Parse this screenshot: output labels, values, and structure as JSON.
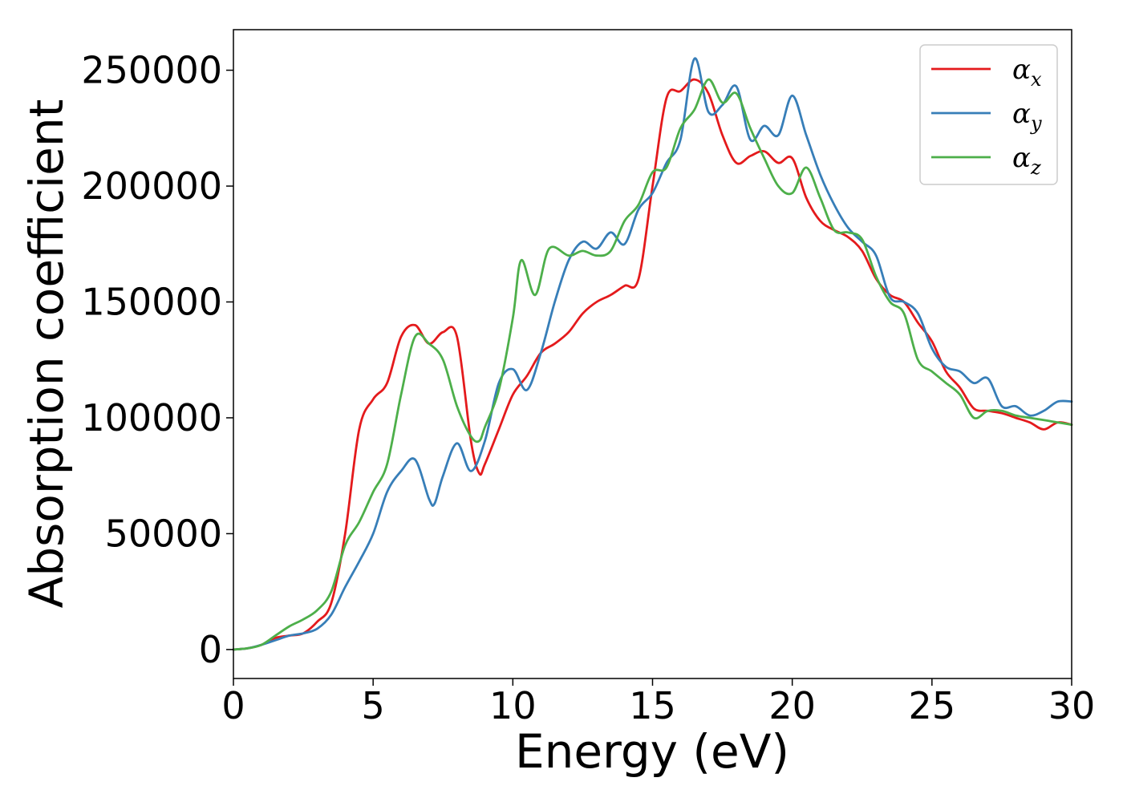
{
  "chart_data": {
    "type": "line",
    "title": "",
    "xlabel": "Energy (eV)",
    "ylabel": "Absorption coefficient",
    "xlim": [
      0,
      30
    ],
    "ylim": [
      -12500,
      267500
    ],
    "xticks": [
      "0",
      "5",
      "10",
      "15",
      "20",
      "25",
      "30"
    ],
    "xtick_values": [
      0,
      5,
      10,
      15,
      20,
      25,
      30
    ],
    "yticks": [
      "0",
      "50000",
      "100000",
      "150000",
      "200000",
      "250000"
    ],
    "ytick_values": [
      0,
      50000,
      100000,
      150000,
      200000,
      250000
    ],
    "grid": false,
    "legend_position": "top-right",
    "series": [
      {
        "name": "αx",
        "base": "α",
        "sub": "x",
        "color": "#e41a1c",
        "x": [
          0,
          0.5,
          1,
          1.5,
          2,
          2.5,
          3,
          3.5,
          4,
          4.5,
          5,
          5.5,
          6,
          6.5,
          7,
          7.5,
          8,
          8.5,
          8.8,
          9,
          9.5,
          10,
          10.5,
          11,
          11.5,
          12,
          12.5,
          13,
          13.5,
          14,
          14.5,
          15,
          15.5,
          16,
          16.5,
          17,
          17.5,
          18,
          18.5,
          19,
          19.5,
          20,
          20.5,
          21,
          21.5,
          22,
          22.5,
          23,
          23.5,
          24,
          24.5,
          25,
          25.5,
          26,
          26.5,
          27,
          27.5,
          28,
          28.5,
          29,
          29.5,
          30
        ],
        "y": [
          0,
          500,
          2000,
          5000,
          6000,
          7000,
          12000,
          20000,
          50000,
          95000,
          108000,
          115000,
          135000,
          140000,
          132000,
          137000,
          135000,
          90000,
          76000,
          80000,
          95000,
          110000,
          118000,
          128000,
          132000,
          137000,
          145000,
          150000,
          153000,
          157000,
          160000,
          200000,
          238000,
          241000,
          246000,
          240000,
          222000,
          210000,
          213000,
          215000,
          210000,
          212000,
          195000,
          185000,
          181000,
          178000,
          172000,
          160000,
          153000,
          150000,
          141000,
          133000,
          120000,
          113000,
          104000,
          103000,
          102000,
          100000,
          98000,
          95000,
          98000,
          97000
        ]
      },
      {
        "name": "αy",
        "base": "α",
        "sub": "y",
        "color": "#377eb8",
        "x": [
          0,
          0.5,
          1,
          1.5,
          2,
          2.5,
          3,
          3.5,
          4,
          4.5,
          5,
          5.5,
          6,
          6.5,
          7,
          7.2,
          7.5,
          8,
          8.5,
          9,
          9.5,
          10,
          10.5,
          11,
          11.5,
          12,
          12.5,
          13,
          13.5,
          14,
          14.5,
          15,
          15.5,
          16,
          16.5,
          17,
          17.5,
          18,
          18.5,
          19,
          19.5,
          20,
          20.5,
          21,
          21.5,
          22,
          22.5,
          23,
          23.5,
          24,
          24.5,
          25,
          25.5,
          26,
          26.5,
          27,
          27.5,
          28,
          28.5,
          29,
          29.5,
          30
        ],
        "y": [
          0,
          500,
          2000,
          4000,
          6000,
          7000,
          9000,
          15000,
          27000,
          38000,
          50000,
          68000,
          77000,
          82000,
          65000,
          63000,
          75000,
          89000,
          77000,
          90000,
          115000,
          121000,
          112000,
          128000,
          150000,
          168000,
          176000,
          173000,
          180000,
          175000,
          190000,
          197000,
          210000,
          220000,
          255000,
          232000,
          235000,
          243000,
          220000,
          226000,
          222000,
          239000,
          222000,
          205000,
          192000,
          182000,
          176000,
          170000,
          152000,
          150000,
          145000,
          130000,
          122000,
          120000,
          115000,
          117000,
          105000,
          105000,
          101000,
          103000,
          107000,
          107000
        ]
      },
      {
        "name": "αz",
        "base": "α",
        "sub": "z",
        "color": "#4daf4a",
        "x": [
          0,
          0.5,
          1,
          1.5,
          2,
          2.5,
          3,
          3.5,
          4,
          4.5,
          5,
          5.5,
          6,
          6.5,
          7,
          7.5,
          8,
          8.5,
          8.8,
          9,
          9.5,
          10,
          10.3,
          10.8,
          11.3,
          12,
          12.5,
          13,
          13.5,
          14,
          14.5,
          15,
          15.5,
          16,
          16.5,
          17,
          17.5,
          18,
          18.5,
          19,
          19.5,
          20,
          20.5,
          21,
          21.5,
          22,
          22.5,
          23,
          23.5,
          24,
          24.5,
          25,
          25.5,
          26,
          26.5,
          27,
          27.5,
          28,
          28.5,
          29,
          29.5,
          30
        ],
        "y": [
          0,
          500,
          2000,
          6000,
          10000,
          13000,
          17000,
          25000,
          45000,
          55000,
          68000,
          80000,
          110000,
          135000,
          132000,
          125000,
          105000,
          92000,
          90000,
          96000,
          112000,
          143000,
          168000,
          153000,
          173000,
          170000,
          172000,
          170000,
          172000,
          185000,
          192000,
          206000,
          208000,
          225000,
          233000,
          246000,
          236000,
          240000,
          225000,
          212000,
          200000,
          197000,
          208000,
          195000,
          181000,
          180000,
          177000,
          161000,
          150000,
          145000,
          125000,
          120000,
          115000,
          110000,
          100000,
          103000,
          103000,
          101000,
          100000,
          99000,
          98000,
          97000
        ]
      }
    ]
  }
}
